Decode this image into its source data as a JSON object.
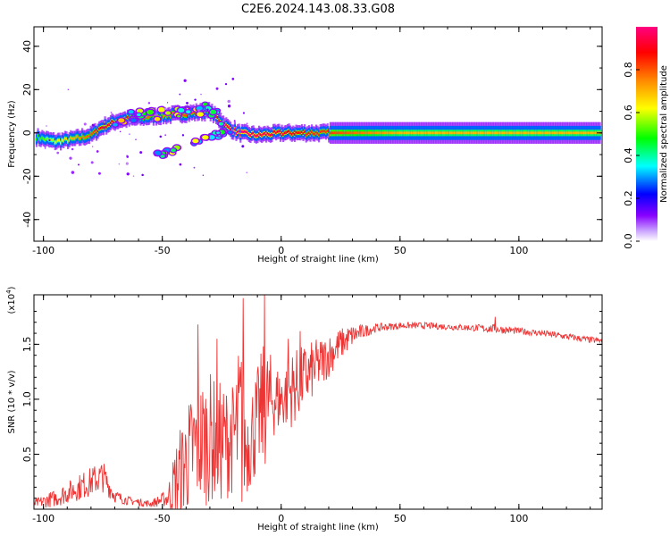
{
  "title": "C2E6.2024.143.08.33.G08",
  "chart_data": [
    {
      "type": "heatmap",
      "title": "",
      "xlabel": "Height of straight line (km)",
      "ylabel": "Frequency (Hz)",
      "xlim": [
        -104,
        135
      ],
      "ylim": [
        -50,
        49
      ],
      "xticks": [
        "-100",
        "-50",
        "0",
        "50",
        "100"
      ],
      "yticks": [
        "-40",
        "-20",
        "0",
        "20",
        "40"
      ],
      "colorbar": {
        "label": "Normalized spectral amplitude",
        "range": [
          0,
          1
        ],
        "ticks": [
          "0.0",
          "0.2",
          "0.4",
          "0.6",
          "0.8"
        ],
        "colormap": [
          "#ffffff",
          "#8800ff",
          "#0000ff",
          "#00ffff",
          "#00ff00",
          "#ffff00",
          "#ff8800",
          "#ff0000",
          "#ff0080"
        ]
      },
      "ridge": {
        "description_points_x": [
          -103,
          -95,
          -88,
          -80,
          -75,
          -68,
          -60,
          -50,
          -40,
          -30,
          -22,
          -18,
          -10,
          0,
          10,
          25,
          50,
          100,
          135
        ],
        "freq_hz": [
          -2,
          -4,
          -3,
          -1,
          3,
          6,
          7,
          8,
          9,
          10,
          2,
          0,
          -1,
          0,
          0,
          0,
          0,
          0,
          0
        ],
        "amplitude": [
          0.5,
          0.6,
          0.7,
          0.8,
          0.9,
          0.9,
          0.8,
          0.75,
          0.8,
          0.85,
          0.95,
          1.0,
          0.95,
          0.9,
          0.85,
          0.8,
          0.7,
          0.7,
          0.7
        ]
      },
      "branch_low": {
        "x": [
          -50,
          -45,
          -40,
          -35,
          -30,
          -25,
          -20
        ],
        "freq_hz": [
          -10,
          -8,
          -6,
          -4,
          -2,
          0,
          1
        ]
      }
    },
    {
      "type": "line",
      "title": "",
      "xlabel": "Height of straight line (km)",
      "ylabel": "SNR (10 * v/v)",
      "y_multiplier": "(x10",
      "y_multiplier_exp": "4",
      "y_multiplier_close": ")",
      "xlim": [
        -104,
        135
      ],
      "ylim": [
        0,
        1.95
      ],
      "xticks": [
        "-100",
        "-50",
        "0",
        "50",
        "100"
      ],
      "yticks": [
        "0.5",
        "1.0",
        "1.5"
      ],
      "color": "#ee3333",
      "envelope": {
        "x": [
          -104,
          -95,
          -85,
          -75,
          -70,
          -65,
          -55,
          -48,
          -44,
          -40,
          -35,
          -30,
          -25,
          -20,
          -17,
          -15,
          -10,
          -7,
          -3,
          0,
          5,
          10,
          15,
          20,
          25,
          30,
          35,
          40,
          50,
          60,
          70,
          80,
          90,
          100,
          110,
          120,
          130,
          135
        ],
        "mean": [
          0.05,
          0.1,
          0.2,
          0.3,
          0.12,
          0.08,
          0.05,
          0.1,
          0.25,
          0.45,
          0.6,
          0.65,
          0.6,
          0.65,
          0.75,
          0.55,
          0.8,
          0.95,
          1.0,
          1.0,
          1.1,
          1.2,
          1.3,
          1.4,
          1.5,
          1.58,
          1.62,
          1.65,
          1.67,
          1.67,
          1.66,
          1.65,
          1.64,
          1.62,
          1.6,
          1.57,
          1.54,
          1.53
        ],
        "noise": [
          0.04,
          0.08,
          0.12,
          0.15,
          0.06,
          0.04,
          0.03,
          0.08,
          0.4,
          0.5,
          0.6,
          0.6,
          0.55,
          0.5,
          0.9,
          0.45,
          0.5,
          0.6,
          0.35,
          0.3,
          0.35,
          0.3,
          0.25,
          0.2,
          0.15,
          0.1,
          0.06,
          0.04,
          0.03,
          0.03,
          0.03,
          0.03,
          0.04,
          0.03,
          0.03,
          0.03,
          0.03,
          0.03
        ]
      },
      "spikes": [
        {
          "x": -35,
          "y": 1.68
        },
        {
          "x": -27,
          "y": 1.55
        },
        {
          "x": -16,
          "y": 1.92
        },
        {
          "x": -7,
          "y": 1.95
        },
        {
          "x": 3,
          "y": 1.55
        },
        {
          "x": 8,
          "y": 1.62
        },
        {
          "x": 90,
          "y": 1.75
        }
      ]
    }
  ]
}
